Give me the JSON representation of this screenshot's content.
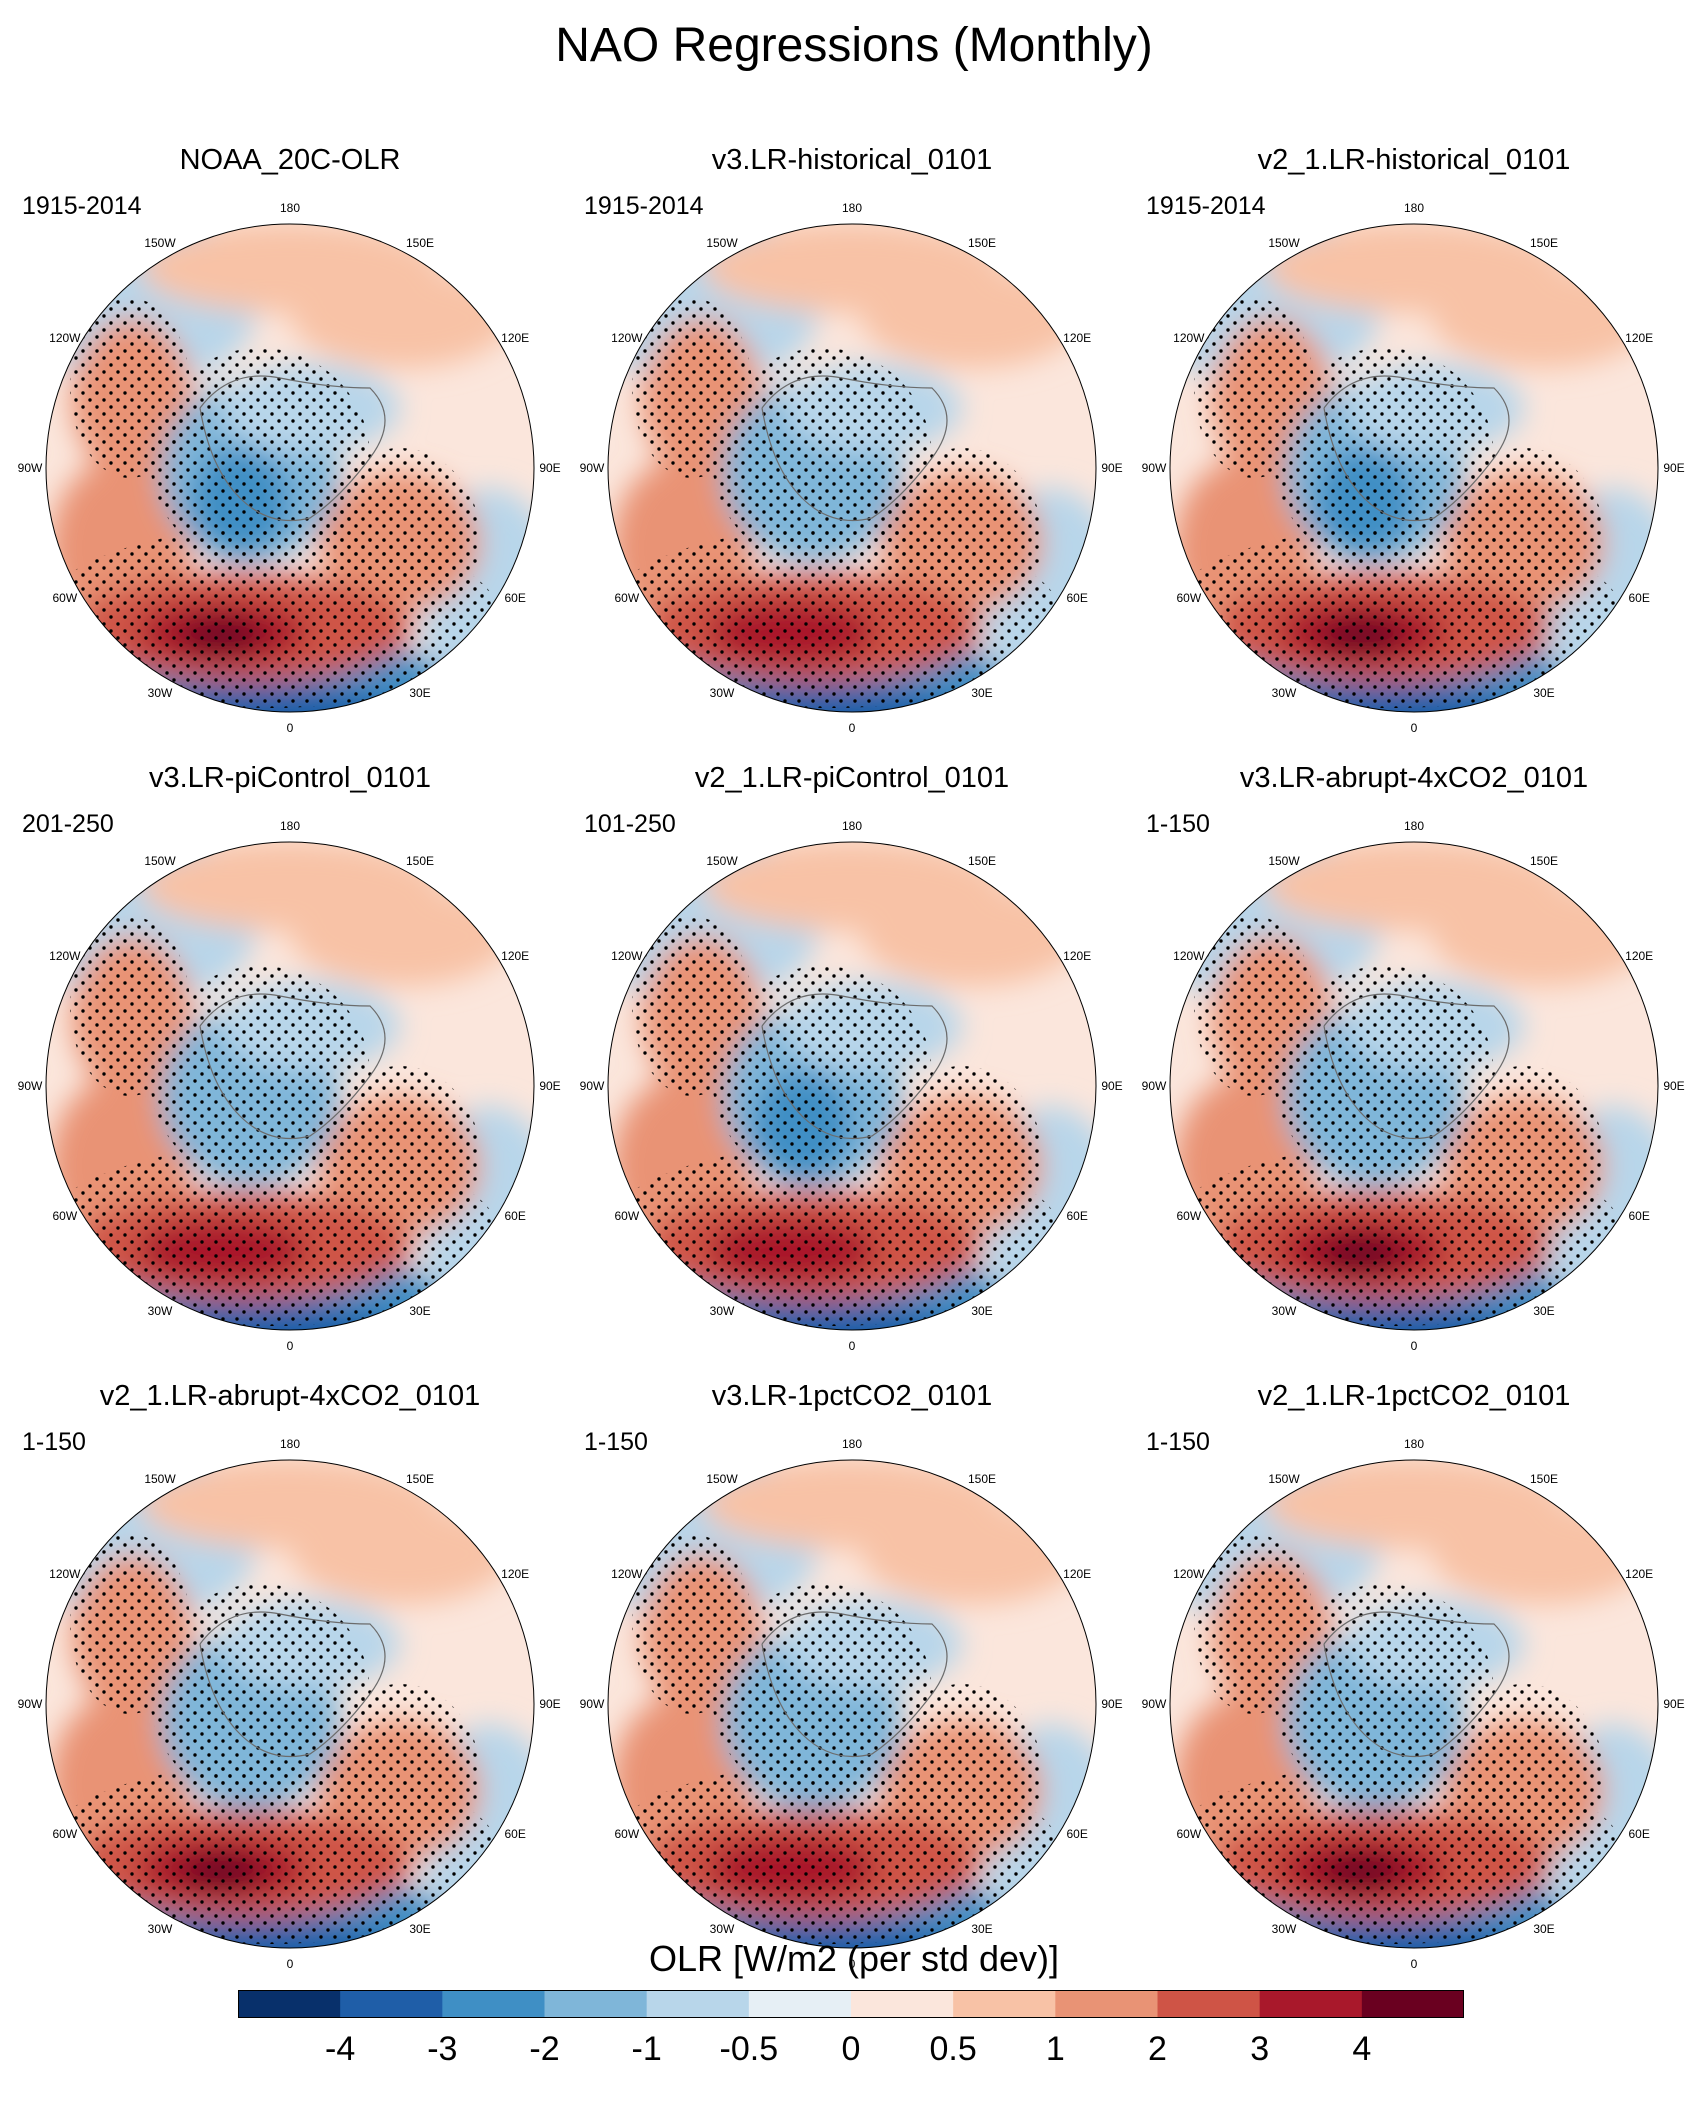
{
  "title": "NAO Regressions (Monthly)",
  "chart_data": {
    "type": "heatmap",
    "projection": "north-polar-stereographic",
    "variable": "OLR",
    "colorbar": {
      "label": "OLR [W/m2 (per std dev)]",
      "levels": [
        "-4",
        "-3",
        "-2",
        "-1",
        "-0.5",
        "0",
        "0.5",
        "1",
        "2",
        "3",
        "4"
      ],
      "colors": [
        "#08306b",
        "#1f5ea8",
        "#3f8fc5",
        "#7fb6d9",
        "#b8d6ea",
        "#e6eff5",
        "#fbe6dc",
        "#f8c2a6",
        "#e99375",
        "#cf5446",
        "#a9182b",
        "#6a0020"
      ]
    },
    "longitude_labels": [
      "180",
      "150E",
      "120E",
      "90E",
      "60E",
      "30E",
      "0",
      "30W",
      "60W",
      "90W",
      "120W",
      "150W"
    ],
    "panels": [
      {
        "title": "NOAA_20C-OLR",
        "period": "1915-2014",
        "nao_center_max": 4.2,
        "arctic_min": -2.5
      },
      {
        "title": "v3.LR-historical_0101",
        "period": "1915-2014",
        "nao_center_max": 3.6,
        "arctic_min": -2.0
      },
      {
        "title": "v2_1.LR-historical_0101",
        "period": "1915-2014",
        "nao_center_max": 4.5,
        "arctic_min": -2.2
      },
      {
        "title": "v3.LR-piControl_0101",
        "period": "201-250",
        "nao_center_max": 3.8,
        "arctic_min": -2.1
      },
      {
        "title": "v2_1.LR-piControl_0101",
        "period": "101-250",
        "nao_center_max": 3.9,
        "arctic_min": -2.3
      },
      {
        "title": "v3.LR-abrupt-4xCO2_0101",
        "period": "1-150",
        "nao_center_max": 4.1,
        "arctic_min": -1.8
      },
      {
        "title": "v2_1.LR-abrupt-4xCO2_0101",
        "period": "1-150",
        "nao_center_max": 4.4,
        "arctic_min": -1.9
      },
      {
        "title": "v3.LR-1pctCO2_0101",
        "period": "1-150",
        "nao_center_max": 3.9,
        "arctic_min": -1.7
      },
      {
        "title": "v2_1.LR-1pctCO2_0101",
        "period": "1-150",
        "nao_center_max": 4.6,
        "arctic_min": -1.9
      }
    ]
  }
}
